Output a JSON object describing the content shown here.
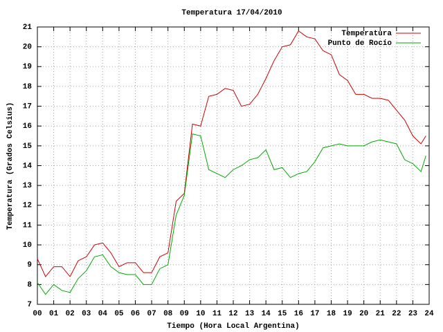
{
  "chart_data": {
    "type": "line",
    "title": "Temperatura 17/04/2010",
    "x_label": "Tiempo (Hora Local Argentina)",
    "y_label": "Temperatura (Grados Celsius)",
    "x": [
      0,
      0.5,
      1,
      1.5,
      2,
      2.5,
      3,
      3.5,
      4,
      4.5,
      5,
      5.5,
      6,
      6.5,
      7,
      7.5,
      8,
      8.5,
      9,
      9.5,
      10,
      10.5,
      11,
      11.5,
      12,
      12.5,
      13,
      13.5,
      14,
      14.5,
      15,
      15.5,
      16,
      16.5,
      17,
      17.5,
      18,
      18.5,
      19,
      19.5,
      20,
      20.5,
      21,
      21.5,
      22,
      22.5,
      23,
      23.5,
      23.8
    ],
    "series": [
      {
        "name": "Temperatura",
        "color": "#cc0000",
        "values": [
          9.3,
          8.4,
          8.9,
          8.9,
          8.4,
          9.2,
          9.4,
          10.0,
          10.1,
          9.6,
          8.9,
          9.1,
          9.1,
          8.6,
          8.6,
          9.4,
          9.6,
          12.2,
          12.6,
          16.1,
          16.0,
          17.5,
          17.6,
          17.9,
          17.8,
          17.0,
          17.1,
          17.6,
          18.4,
          19.3,
          20.0,
          20.1,
          20.8,
          20.5,
          20.4,
          19.8,
          19.6,
          18.6,
          18.3,
          17.6,
          17.6,
          17.4,
          17.4,
          17.3,
          16.8,
          16.3,
          15.5,
          15.1,
          15.5
        ]
      },
      {
        "name": "Punto de Rocío",
        "color": "#00aa00",
        "values": [
          8.1,
          7.5,
          8.0,
          7.7,
          7.6,
          8.3,
          8.7,
          9.4,
          9.5,
          8.9,
          8.6,
          8.5,
          8.5,
          8.0,
          8.0,
          8.8,
          9.0,
          11.5,
          12.5,
          15.6,
          15.5,
          13.8,
          13.6,
          13.4,
          13.8,
          14.0,
          14.3,
          14.4,
          14.8,
          13.8,
          13.9,
          13.4,
          13.6,
          13.7,
          14.2,
          14.9,
          15.0,
          15.1,
          15.0,
          15.0,
          15.0,
          15.2,
          15.3,
          15.2,
          15.1,
          14.3,
          14.1,
          13.7,
          14.5
        ]
      }
    ],
    "xlim": [
      0,
      24
    ],
    "xticks": [
      {
        "value": 0,
        "label": "00"
      },
      {
        "value": 1,
        "label": "01"
      },
      {
        "value": 2,
        "label": "02"
      },
      {
        "value": 3,
        "label": "03"
      },
      {
        "value": 4,
        "label": "04"
      },
      {
        "value": 5,
        "label": "05"
      },
      {
        "value": 6,
        "label": "06"
      },
      {
        "value": 7,
        "label": "07"
      },
      {
        "value": 8,
        "label": "08"
      },
      {
        "value": 9,
        "label": "09"
      },
      10,
      11,
      12,
      13,
      14,
      15,
      16,
      17,
      18,
      19,
      20,
      21,
      22,
      23,
      24
    ],
    "ylim": [
      7,
      21
    ],
    "yticks": [
      7,
      8,
      9,
      10,
      11,
      12,
      13,
      14,
      15,
      16,
      17,
      18,
      19,
      20,
      21
    ],
    "grid": true,
    "legend": "top-right"
  }
}
